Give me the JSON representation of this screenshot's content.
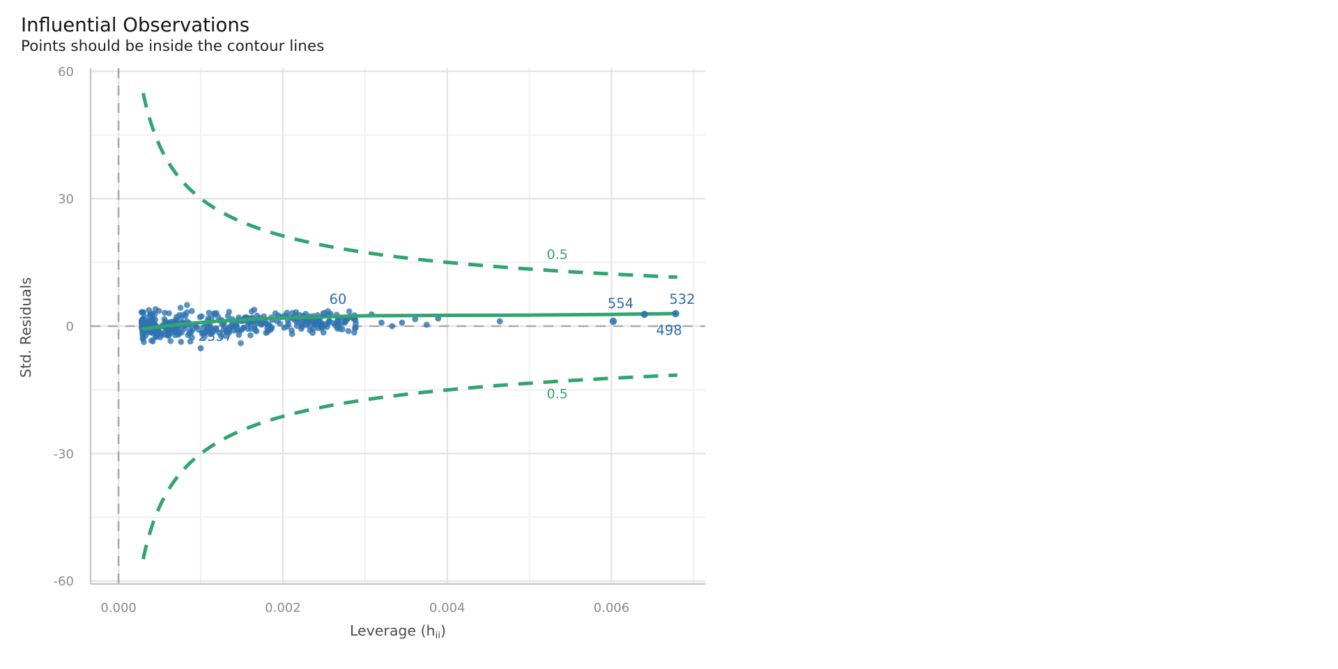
{
  "title": "Influential Observations",
  "subtitle": "Points should be inside the contour lines",
  "chart_data": {
    "type": "scatter",
    "title": "Influential Observations",
    "subtitle": "Points should be inside the contour lines",
    "xlabel_parts": {
      "prefix": "Leverage (h",
      "sub": "ii",
      "suffix": ")"
    },
    "ylabel": "Std. Residuals",
    "xlim": [
      -0.00034,
      0.00714
    ],
    "ylim": [
      -60.7,
      60.7
    ],
    "x_ticks": [
      {
        "v": 0.0,
        "label": "0.000"
      },
      {
        "v": 0.002,
        "label": "0.002"
      },
      {
        "v": 0.004,
        "label": "0.004"
      },
      {
        "v": 0.006,
        "label": "0.006"
      }
    ],
    "y_ticks": [
      {
        "v": 60,
        "label": "60"
      },
      {
        "v": 30,
        "label": "30"
      },
      {
        "v": 0,
        "label": "0"
      },
      {
        "v": -30,
        "label": "-30"
      },
      {
        "v": -60,
        "label": "-60"
      }
    ],
    "x_grid_minor_step": 0.001,
    "y_grid_minor_step": 15,
    "reference_lines": {
      "vline_x": 0.0,
      "hline_y": 0.0,
      "style": "dashed"
    },
    "cook_contours": {
      "level": 0.5,
      "k": 0.95,
      "h_start": 0.0003,
      "h_end": 0.0068,
      "labels": [
        {
          "text": "0.5",
          "x": 0.00534,
          "y": 17.0
        },
        {
          "text": "0.5",
          "x": 0.00534,
          "y": -15.8
        }
      ]
    },
    "smoother": [
      [
        0.0003,
        -0.65
      ],
      [
        0.0006,
        0.1
      ],
      [
        0.0009,
        0.7
      ],
      [
        0.0012,
        1.15
      ],
      [
        0.0016,
        1.6
      ],
      [
        0.002,
        1.9
      ],
      [
        0.0025,
        2.2
      ],
      [
        0.003,
        2.45
      ],
      [
        0.004,
        2.55
      ],
      [
        0.005,
        2.6
      ],
      [
        0.006,
        2.75
      ],
      [
        0.00678,
        2.95
      ]
    ],
    "labeled_points": [
      {
        "label": "60",
        "h": 0.0025,
        "r": 2.94,
        "label_x": 0.00267,
        "label_y": 6.4,
        "behind": false
      },
      {
        "label": "554",
        "h": 0.00602,
        "r": 1.14,
        "label_x": 0.00611,
        "label_y": 5.4,
        "behind": false
      },
      {
        "label": "532",
        "h": 0.00678,
        "r": 2.94,
        "label_x": 0.00686,
        "label_y": 6.4,
        "behind": false
      },
      {
        "label": "498",
        "h": 0.0064,
        "r": 2.77,
        "label_x": 0.0067,
        "label_y": -0.9,
        "behind": false
      },
      {
        "label": "2337",
        "h": 0.0011,
        "r": -0.8,
        "label_x": 0.00118,
        "label_y": -2.3,
        "behind": true
      }
    ],
    "extra_points": [
      [
        0.00308,
        2.77
      ],
      [
        0.0032,
        0.82
      ],
      [
        0.00333,
        0.0
      ],
      [
        0.00345,
        0.82
      ],
      [
        0.00361,
        1.63
      ],
      [
        0.00375,
        0.33
      ],
      [
        0.00389,
        1.79
      ],
      [
        0.00464,
        1.14
      ],
      [
        0.00076,
        -3.7
      ],
      [
        0.001,
        -5.2
      ]
    ],
    "cluster": {
      "n": 380,
      "seed": 42,
      "h_min": 0.00028,
      "h_max": 0.0029,
      "skew": 1.7,
      "mean_left": -0.2,
      "mean_right": 1.4,
      "sd_left": 1.9,
      "sd_right": 1.1,
      "r_min": -4.4,
      "r_max": 5.2
    },
    "colors": {
      "point": "#2e73b0",
      "annotation": "#2b6cab",
      "green": "#31a46f",
      "grid_major": "#e3e3e3",
      "grid_minor": "#efefef",
      "axis": "#c8c8c8",
      "ref": "#a9a9a9",
      "tick": "#8a8a8a",
      "axis_title": "#4a4a4a"
    },
    "legend": "none",
    "grid": "on"
  }
}
